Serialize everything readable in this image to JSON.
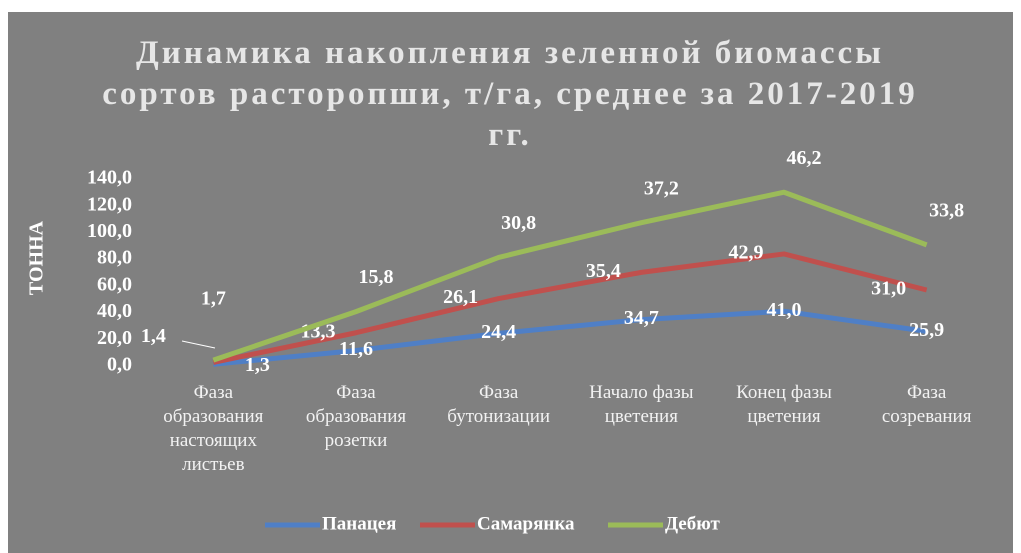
{
  "chart_data": {
    "type": "stacked_line",
    "title": "Динамика накопления зеленной биомассы\nсортов расторопши, т/га, среднее за 2017-2019\nгг.",
    "y_label": "ТОННА",
    "categories": [
      "Фаза\nобразования\nнастоящих\nлистьев",
      "Фаза\nобразования\nрозетки",
      "Фаза\nбутонизации",
      "Начало фазы\nцветения",
      "Конец фазы\nцветения",
      "Фаза\nсозревания"
    ],
    "series": [
      {
        "name": "Панацея",
        "color": "#4f7fc6",
        "values": [
          1.3,
          11.6,
          24.4,
          34.7,
          41.0,
          25.9
        ],
        "value_labels": [
          "1,3",
          "11,6",
          "24,4",
          "34,7",
          "41,0",
          "25,9"
        ]
      },
      {
        "name": "Самарянка",
        "color": "#c0504d",
        "values": [
          1.4,
          13.3,
          26.1,
          35.4,
          42.9,
          31.0
        ],
        "value_labels": [
          "1,4",
          "13,3",
          "26,1",
          "35,4",
          "42,9",
          "31,0"
        ]
      },
      {
        "name": "Дебют",
        "color": "#9bbb59",
        "values": [
          1.7,
          15.8,
          30.8,
          37.2,
          46.2,
          33.8
        ],
        "value_labels": [
          "1,7",
          "15,8",
          "30,8",
          "37,2",
          "46,2",
          "33,8"
        ]
      }
    ],
    "ylim": [
      0,
      140
    ],
    "yticks": [
      {
        "value": 0,
        "label": "0,0"
      },
      {
        "value": 20,
        "label": "20,0"
      },
      {
        "value": 40,
        "label": "40,0"
      },
      {
        "value": 60,
        "label": "60,0"
      },
      {
        "value": 80,
        "label": "80,0"
      },
      {
        "value": 100,
        "label": "100,0"
      },
      {
        "value": 120,
        "label": "120,0"
      },
      {
        "value": 140,
        "label": "140,0"
      }
    ],
    "legend": "bottom"
  }
}
